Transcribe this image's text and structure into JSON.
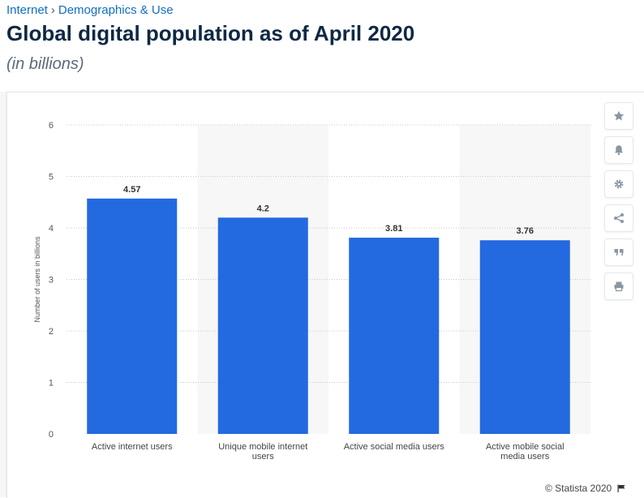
{
  "breadcrumb": {
    "parent": "Internet",
    "separator": "›",
    "current": "Demographics & Use"
  },
  "title": "Global digital population as of April 2020",
  "subtitle": "(in billions)",
  "toolbar": [
    {
      "icon": "star-icon"
    },
    {
      "icon": "bell-icon"
    },
    {
      "icon": "gear-icon"
    },
    {
      "icon": "share-icon"
    },
    {
      "icon": "quote-icon"
    },
    {
      "icon": "print-icon"
    }
  ],
  "credit": "© Statista 2020",
  "colors": {
    "bar": "#2369e0",
    "band": "#f7f7f7",
    "grid": "#c8c8c8",
    "title": "#0e2845",
    "link": "#0f6ec5"
  },
  "chart_data": {
    "type": "bar",
    "categories": [
      "Active internet users",
      "Unique mobile internet users",
      "Active social media users",
      "Active mobile social media users"
    ],
    "values": [
      4.57,
      4.2,
      3.81,
      3.76
    ],
    "ylabel": "Number of users in billions",
    "ylim": [
      0,
      6
    ],
    "yticks": [
      "0",
      "1",
      "2",
      "3",
      "4",
      "5",
      "6"
    ],
    "data_labels": [
      "4.57",
      "4.2",
      "3.81",
      "3.76"
    ],
    "grid": true
  }
}
